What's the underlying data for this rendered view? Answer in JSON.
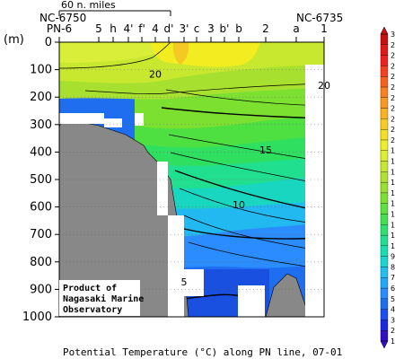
{
  "chart_data": {
    "type": "heatmap",
    "title": "Potential Temperature (°C) along PN line, 07-01",
    "ylabel": "(m)",
    "ylim": [
      0,
      1000
    ],
    "y_ticks": [
      0,
      100,
      200,
      300,
      400,
      500,
      600,
      700,
      800,
      900,
      1000
    ],
    "stations": [
      "PN-6",
      "5",
      "h",
      "4'",
      "f'",
      "4",
      "d'",
      "3'",
      "c",
      "3",
      "b'",
      "b",
      "2",
      "a",
      "1"
    ],
    "station_headers": {
      "left": "NC-6750",
      "right": "NC-6735"
    },
    "scale_bar_label": "60 n. miles",
    "colorbar": {
      "min": 1,
      "max": 30,
      "ticks": [
        1,
        2,
        3,
        4,
        5,
        6,
        7,
        8,
        9,
        10,
        11,
        12,
        13,
        14,
        15,
        16,
        17,
        18,
        19,
        20,
        21,
        22,
        23,
        24,
        25,
        26,
        27,
        28,
        29,
        30
      ]
    },
    "contour_labels": [
      {
        "value": "20",
        "x_station": "4",
        "depth": 120
      },
      {
        "value": "20",
        "x_station": "1",
        "depth": 160
      },
      {
        "value": "15",
        "x_station": "2",
        "depth": 395
      },
      {
        "value": "10",
        "x_station": "b",
        "depth": 595
      },
      {
        "value": "5",
        "x_station": "3'",
        "depth": 875
      }
    ],
    "credit": [
      "Product of",
      "Nagasaki Marine",
      "Observatory"
    ]
  }
}
